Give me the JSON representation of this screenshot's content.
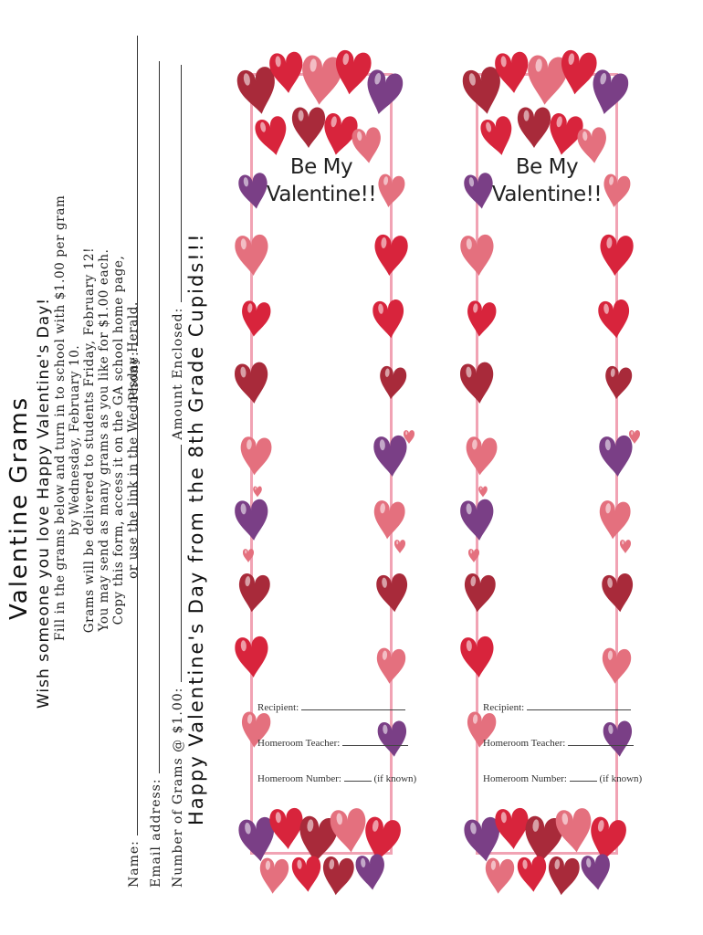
{
  "grams_form": {
    "title": "Valentine Grams",
    "subtitle": "Wish someone you love Happy Valentine's Day!",
    "instructions": [
      "Fill in the grams below and turn in to school with $1.00 per gram",
      "by Wednesday, February 10.",
      "Grams will be delivered to students Friday, February 12!",
      "You may send as many grams as you like for $1.00 each.",
      "Copy this form, access it on the GA school home page,",
      "or use the link in the Wednesday Herald."
    ],
    "name_label": "Name:",
    "phone_label": "Phone:",
    "email_label": "Email address:",
    "number_label": "Number of Grams @ $1.00:",
    "amount_label": "Amount Enclosed:",
    "closing": "Happy Valentine's Day from the 8th Grade Cupids!!!"
  },
  "cards": [
    {
      "heading_line1": "Be My",
      "heading_line2": "Valentine!!",
      "recipient_label": "Recipient:",
      "homeroom_teacher_label": "Homeroom Teacher:",
      "homeroom_number_label": "Homeroom Number:",
      "if_known": "(if known)"
    },
    {
      "heading_line1": "Be My",
      "heading_line2": "Valentine!!",
      "recipient_label": "Recipient:",
      "homeroom_teacher_label": "Homeroom Teacher:",
      "homeroom_number_label": "Homeroom Number:",
      "if_known": "(if known)"
    }
  ],
  "colors": {
    "heart_red": "#d8243c",
    "heart_dark_red": "#a82a3a",
    "heart_pink": "#e4707e",
    "heart_purple": "#7a3f86",
    "frame_pink": "#f1a3b4"
  }
}
